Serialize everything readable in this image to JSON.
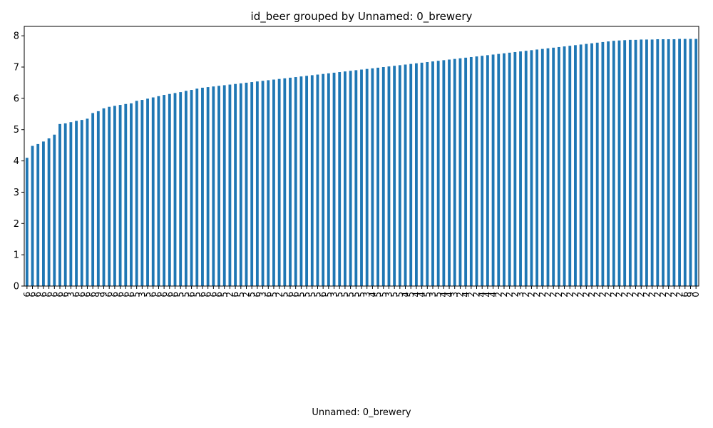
{
  "chart_data": {
    "type": "bar",
    "title": "id_beer grouped by Unnamed: 0_brewery",
    "xlabel": "Unnamed: 0_brewery",
    "ylabel": "",
    "ylim": [
      0,
      8.3
    ],
    "yticks": [
      0,
      1,
      2,
      3,
      4,
      5,
      6,
      7,
      8
    ],
    "grid": false,
    "legend": "none",
    "bar_color": "#1f77b4",
    "sorted": "ascending",
    "categories": [
      "6",
      "6",
      "6",
      "6",
      "6",
      "6",
      "6",
      "6",
      "3",
      "6",
      "6",
      "6",
      "6",
      "9",
      "9",
      "6",
      "6",
      "6",
      "6",
      "6",
      "5",
      "3",
      "5",
      "6",
      "6",
      "6",
      "6",
      "6",
      "5",
      "5",
      "6",
      "5",
      "6",
      "6",
      "6",
      "6",
      "5",
      "2",
      "6",
      "5",
      "2",
      "5",
      "6",
      "3",
      "6",
      "5",
      "2",
      "5",
      "6",
      "6",
      "5",
      "5",
      "5",
      "5",
      "6",
      "5",
      "3",
      "5",
      "5",
      "5",
      "5",
      "5",
      "3",
      "4",
      "5",
      "5",
      "3",
      "5",
      "5",
      "4",
      "5",
      "4",
      "4",
      "5",
      "3",
      "5",
      "4",
      "4",
      "3",
      "2",
      "4",
      "2",
      "2",
      "4",
      "4",
      "4",
      "2",
      "2",
      "2",
      "2",
      "3",
      "2",
      "2",
      "2",
      "2",
      "2",
      "2",
      "2",
      "2",
      "2",
      "2",
      "2",
      "2",
      "2",
      "2",
      "2",
      "2",
      "2",
      "2",
      "2",
      "2",
      "2",
      "2",
      "2",
      "2",
      "2",
      "2",
      "2",
      "2",
      "2",
      "6",
      "9",
      "0"
    ],
    "values": [
      4.1,
      4.48,
      4.54,
      4.62,
      4.72,
      4.84,
      5.18,
      5.2,
      5.24,
      5.28,
      5.31,
      5.35,
      5.53,
      5.59,
      5.68,
      5.73,
      5.76,
      5.79,
      5.82,
      5.84,
      5.92,
      5.95,
      5.99,
      6.03,
      6.07,
      6.11,
      6.14,
      6.17,
      6.2,
      6.24,
      6.27,
      6.31,
      6.34,
      6.36,
      6.38,
      6.4,
      6.42,
      6.44,
      6.46,
      6.48,
      6.5,
      6.52,
      6.54,
      6.56,
      6.58,
      6.6,
      6.62,
      6.64,
      6.66,
      6.68,
      6.7,
      6.72,
      6.74,
      6.76,
      6.78,
      6.8,
      6.82,
      6.84,
      6.86,
      6.88,
      6.9,
      6.92,
      6.94,
      6.96,
      6.98,
      7.0,
      7.02,
      7.04,
      7.06,
      7.08,
      7.1,
      7.12,
      7.14,
      7.16,
      7.18,
      7.2,
      7.22,
      7.24,
      7.26,
      7.28,
      7.3,
      7.32,
      7.34,
      7.36,
      7.38,
      7.4,
      7.42,
      7.44,
      7.46,
      7.48,
      7.5,
      7.52,
      7.54,
      7.56,
      7.58,
      7.6,
      7.62,
      7.64,
      7.66,
      7.68,
      7.7,
      7.72,
      7.74,
      7.76,
      7.78,
      7.8,
      7.82,
      7.84,
      7.85,
      7.86,
      7.87,
      7.87,
      7.88,
      7.88,
      7.88,
      7.89,
      7.89,
      7.89,
      7.89,
      7.9,
      7.9,
      7.9,
      7.9
    ]
  }
}
